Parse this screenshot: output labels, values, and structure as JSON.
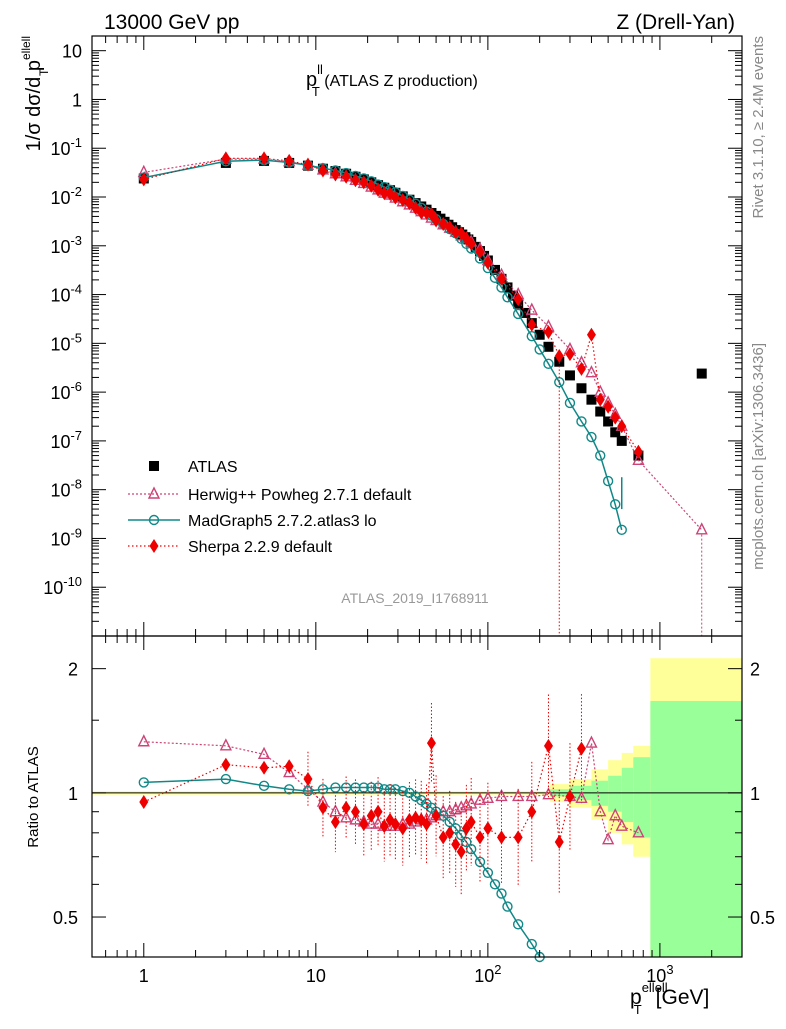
{
  "header": {
    "energy": "13000 GeV pp",
    "process": "Z (Drell-Yan)"
  },
  "side_texts": {
    "rivet": "Rivet 3.1.10, ≥ 2.4M events",
    "mcplots": "mcplots.cern.ch [arXiv:1306.3436]"
  },
  "analysis_id": "ATLAS_2019_I1768911",
  "colors": {
    "atlas": "#000000",
    "herwig": "#cc4477",
    "madgraph": "#118888",
    "sherpa": "#ee0000",
    "band_yellow": "#ffff99",
    "band_green": "#99ff99"
  },
  "chart_data": [
    {
      "type": "scatter",
      "title_main": "p",
      "title_sup": "ll",
      "title_sub": "T",
      "title_rest": " (ATLAS Z production)",
      "ylabel": "1/σ dσ/d p",
      "ylabel_sup": "ellell",
      "ylabel_sub": "T",
      "xscale": "log",
      "yscale": "log",
      "xlim": [
        0.5,
        3000
      ],
      "ylim": [
        1e-11,
        20
      ],
      "y_tick_labels": [
        "10",
        "1",
        "10^-1",
        "10^-2",
        "10^-3",
        "10^-4",
        "10^-5",
        "10^-6",
        "10^-7",
        "10^-8",
        "10^-9",
        "10^-10"
      ],
      "legend_position": "lower-left",
      "series": [
        {
          "name": "ATLAS",
          "key": "atlas",
          "x": [
            1,
            3,
            5,
            7,
            9,
            11,
            13,
            15,
            17,
            19,
            21,
            23,
            25,
            27,
            29,
            32,
            35,
            38,
            41,
            44,
            47,
            50,
            53,
            56,
            59,
            62,
            65,
            68,
            71,
            74,
            77,
            80,
            85,
            90,
            95,
            100,
            110,
            120,
            130,
            140,
            150,
            165,
            180,
            200,
            225,
            260,
            300,
            350,
            400,
            450,
            500,
            550,
            600,
            750,
            1750
          ],
          "y": [
            0.024,
            0.05,
            0.055,
            0.05,
            0.044,
            0.038,
            0.034,
            0.03,
            0.026,
            0.023,
            0.02,
            0.0175,
            0.0155,
            0.0138,
            0.0122,
            0.0103,
            0.0088,
            0.0075,
            0.0064,
            0.0055,
            0.0047,
            0.0041,
            0.0036,
            0.0031,
            0.0027,
            0.0024,
            0.0021,
            0.0019,
            0.0017,
            0.0015,
            0.00135,
            0.0012,
            0.00095,
            0.00078,
            0.00062,
            0.0005,
            0.00032,
            0.00021,
            0.00014,
            9.5e-05,
            6.5e-05,
            4.2e-05,
            2.6e-05,
            1.5e-05,
            8.5e-06,
            4.2e-06,
            2.2e-06,
            1.2e-06,
            7e-07,
            4e-07,
            2.5e-07,
            1.5e-07,
            1e-07,
            5e-08,
            2.4e-06
          ]
        },
        {
          "name": "Herwig++ Powheg 2.7.1 default",
          "key": "herwig",
          "x": [
            1,
            3,
            5,
            7,
            9,
            11,
            13,
            15,
            17,
            19,
            21,
            23,
            25,
            27,
            29,
            32,
            35,
            38,
            41,
            44,
            47,
            50,
            55,
            60,
            65,
            70,
            75,
            80,
            90,
            100,
            120,
            150,
            180,
            225,
            300,
            350,
            400,
            450,
            500,
            550,
            600,
            750,
            1750
          ],
          "y": [
            0.032,
            0.06,
            0.06,
            0.053,
            0.045,
            0.036,
            0.03,
            0.026,
            0.022,
            0.019,
            0.016,
            0.014,
            0.012,
            0.011,
            0.0095,
            0.008,
            0.0069,
            0.0059,
            0.005,
            0.0043,
            0.0037,
            0.0033,
            0.0027,
            0.0023,
            0.0019,
            0.0016,
            0.0014,
            0.0012,
            0.00085,
            0.0005,
            0.00025,
            0.0001,
            4.8e-05,
            2.2e-05,
            7.5e-06,
            4e-06,
            2.5e-06,
            1e-06,
            6e-07,
            3.5e-07,
            2e-07,
            4e-08,
            1.5e-09
          ]
        },
        {
          "name": "MadGraph5 2.7.2.atlas3 lo",
          "key": "madgraph",
          "x": [
            1,
            3,
            5,
            7,
            9,
            11,
            13,
            15,
            17,
            19,
            21,
            23,
            25,
            27,
            29,
            32,
            35,
            38,
            41,
            44,
            47,
            50,
            55,
            60,
            65,
            70,
            75,
            80,
            90,
            100,
            110,
            120,
            130,
            150,
            180,
            200,
            225,
            260,
            300,
            350,
            400,
            450,
            500,
            550,
            600
          ],
          "y": [
            0.025,
            0.054,
            0.057,
            0.051,
            0.045,
            0.039,
            0.035,
            0.031,
            0.027,
            0.024,
            0.021,
            0.018,
            0.016,
            0.014,
            0.0125,
            0.0105,
            0.0088,
            0.0073,
            0.006,
            0.005,
            0.0042,
            0.0035,
            0.0028,
            0.0022,
            0.0018,
            0.0014,
            0.0011,
            0.00088,
            0.00055,
            0.00035,
            0.00022,
            0.00014,
            8.8e-05,
            4e-05,
            1.4e-05,
            7.5e-06,
            3.8e-06,
            1.6e-06,
            6e-07,
            2.5e-07,
            1.2e-07,
            5e-08,
            1.5e-08,
            5e-09,
            1.5e-09
          ]
        },
        {
          "name": "Sherpa 2.2.9 default",
          "key": "sherpa",
          "x": [
            1,
            3,
            5,
            7,
            9,
            11,
            13,
            15,
            17,
            19,
            21,
            23,
            25,
            27,
            29,
            32,
            35,
            38,
            41,
            44,
            47,
            50,
            55,
            60,
            65,
            70,
            75,
            80,
            90,
            100,
            120,
            150,
            180,
            225,
            260,
            300,
            350,
            400,
            450,
            500,
            550,
            600,
            750
          ],
          "y": [
            0.023,
            0.062,
            0.062,
            0.055,
            0.046,
            0.035,
            0.029,
            0.026,
            0.022,
            0.02,
            0.017,
            0.014,
            0.012,
            0.0117,
            0.0098,
            0.0087,
            0.0075,
            0.006,
            0.0048,
            0.0047,
            0.0045,
            0.0033,
            0.0028,
            0.0024,
            0.0019,
            0.0018,
            0.0014,
            0.0011,
            0.00075,
            0.00045,
            0.00021,
            8e-05,
            2.4e-05,
            1.7e-05,
            5.5e-06,
            6e-06,
            3e-06,
            1.5e-05,
            7e-07,
            5e-07,
            3e-07,
            2e-07,
            6e-08
          ]
        }
      ]
    },
    {
      "type": "scatter",
      "ylabel": "Ratio to ATLAS",
      "xlabel": "p",
      "xlabel_sup": "ellell",
      "xlabel_sub": "T",
      "xlabel_rest": "[GeV]",
      "xscale": "log",
      "yscale": "log",
      "xlim": [
        0.5,
        3000
      ],
      "ylim": [
        0.4,
        2.4
      ],
      "y_ticks": [
        0.5,
        1,
        2
      ],
      "y_tick_labels": [
        "0.5",
        "1",
        "2"
      ],
      "x_ticks": [
        1,
        10,
        100,
        1000
      ],
      "x_tick_labels": [
        "1",
        "10",
        "10^2",
        "10^3"
      ],
      "bands": [
        {
          "x0": 230,
          "x1": 300,
          "yellow": [
            0.95,
            1.05
          ],
          "green": [
            0.98,
            1.02
          ]
        },
        {
          "x0": 300,
          "x1": 400,
          "yellow": [
            0.92,
            1.08
          ],
          "green": [
            0.96,
            1.04
          ]
        },
        {
          "x0": 400,
          "x1": 500,
          "yellow": [
            0.86,
            1.14
          ],
          "green": [
            0.93,
            1.07
          ]
        },
        {
          "x0": 500,
          "x1": 600,
          "yellow": [
            0.8,
            1.2
          ],
          "green": [
            0.9,
            1.1
          ]
        },
        {
          "x0": 600,
          "x1": 700,
          "yellow": [
            0.75,
            1.25
          ],
          "green": [
            0.85,
            1.15
          ]
        },
        {
          "x0": 700,
          "x1": 880,
          "yellow": [
            0.7,
            1.3
          ],
          "green": [
            0.78,
            1.22
          ]
        },
        {
          "x0": 880,
          "x1": 3000,
          "yellow": [
            0.38,
            2.12
          ],
          "green": [
            0.38,
            1.67
          ]
        }
      ],
      "series": [
        {
          "name": "Herwig++ Powheg 2.7.1 default",
          "key": "herwig",
          "x": [
            1,
            3,
            5,
            7,
            9,
            11,
            13,
            15,
            17,
            19,
            21,
            23,
            25,
            27,
            29,
            32,
            35,
            38,
            41,
            44,
            47,
            50,
            55,
            60,
            65,
            70,
            75,
            80,
            90,
            100,
            120,
            150,
            180,
            225,
            300,
            350,
            400,
            450,
            500,
            550,
            600,
            750
          ],
          "y": [
            1.33,
            1.3,
            1.24,
            1.12,
            1.02,
            0.95,
            0.9,
            0.87,
            0.86,
            0.85,
            0.84,
            0.84,
            0.83,
            0.83,
            0.83,
            0.84,
            0.84,
            0.85,
            0.86,
            0.86,
            0.87,
            0.88,
            0.9,
            0.9,
            0.91,
            0.92,
            0.93,
            0.94,
            0.96,
            0.97,
            0.98,
            0.98,
            0.98,
            0.99,
            0.98,
            0.97,
            1.32,
            0.9,
            0.77,
            0.88,
            0.83,
            0.8
          ]
        },
        {
          "name": "MadGraph5 2.7.2.atlas3 lo",
          "key": "madgraph",
          "x": [
            1,
            3,
            5,
            7,
            9,
            11,
            13,
            15,
            17,
            19,
            21,
            23,
            25,
            27,
            29,
            32,
            35,
            38,
            41,
            44,
            47,
            50,
            55,
            60,
            65,
            70,
            75,
            80,
            90,
            100,
            110,
            120,
            130,
            150,
            180,
            200
          ],
          "y": [
            1.06,
            1.08,
            1.04,
            1.02,
            1.01,
            1.02,
            1.03,
            1.03,
            1.03,
            1.03,
            1.03,
            1.03,
            1.02,
            1.02,
            1.02,
            1.01,
            1.0,
            0.98,
            0.96,
            0.94,
            0.92,
            0.9,
            0.88,
            0.85,
            0.82,
            0.79,
            0.76,
            0.73,
            0.68,
            0.64,
            0.6,
            0.57,
            0.53,
            0.48,
            0.43,
            0.4
          ]
        },
        {
          "name": "Sherpa 2.2.9 default",
          "key": "sherpa",
          "x": [
            1,
            3,
            5,
            7,
            9,
            11,
            13,
            15,
            17,
            19,
            21,
            23,
            25,
            27,
            29,
            32,
            35,
            38,
            41,
            44,
            47,
            50,
            55,
            60,
            65,
            70,
            75,
            80,
            90,
            100,
            120,
            150,
            180,
            225,
            260,
            300,
            350
          ],
          "y": [
            0.95,
            1.17,
            1.15,
            1.16,
            1.08,
            0.92,
            0.85,
            0.92,
            0.9,
            0.84,
            0.88,
            0.9,
            0.83,
            0.86,
            0.84,
            0.82,
            0.86,
            0.87,
            0.86,
            0.84,
            1.32,
            0.88,
            0.78,
            0.8,
            0.75,
            0.72,
            0.82,
            0.85,
            0.78,
            0.82,
            0.78,
            0.78,
            0.9,
            1.3,
            0.76,
            0.98,
            1.28
          ]
        }
      ]
    }
  ]
}
